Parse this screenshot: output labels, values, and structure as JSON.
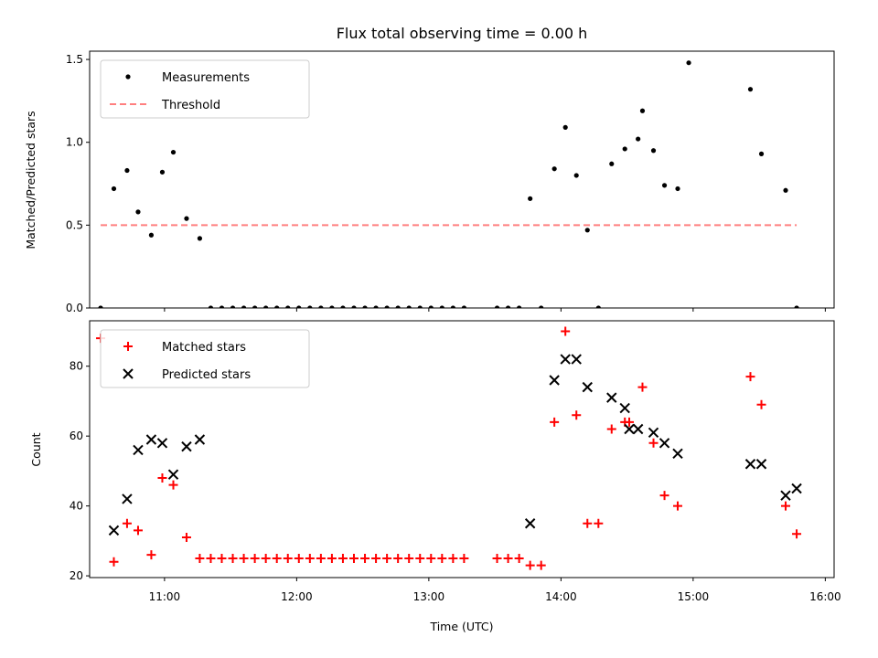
{
  "chart_data": [
    {
      "type": "scatter",
      "title": "Flux total observing time = 0.00 h",
      "xlabel": "",
      "ylabel": "Matched/Predicted stars",
      "xlim": [
        "10:26",
        "16:04"
      ],
      "ylim": [
        0,
        1.55
      ],
      "yticks": [
        "0.0",
        "0.5",
        "1.0",
        "1.5"
      ],
      "grid": false,
      "legend_position": "top-left",
      "series": [
        {
          "name": "Measurements",
          "marker": "dot",
          "color": "#000000",
          "x": [
            "10:31",
            "10:37",
            "10:43",
            "10:48",
            "10:54",
            "10:59",
            "11:04",
            "11:10",
            "11:16",
            "11:21",
            "11:26",
            "11:31",
            "11:36",
            "11:41",
            "11:46",
            "11:51",
            "11:56",
            "12:01",
            "12:06",
            "12:11",
            "12:16",
            "12:21",
            "12:26",
            "12:31",
            "12:36",
            "12:41",
            "12:46",
            "12:51",
            "12:56",
            "13:01",
            "13:06",
            "13:11",
            "13:16",
            "13:31",
            "13:36",
            "13:41",
            "13:46",
            "13:51",
            "13:57",
            "14:02",
            "14:07",
            "14:12",
            "14:17",
            "14:23",
            "14:29",
            "14:35",
            "14:37",
            "14:42",
            "14:47",
            "14:53",
            "14:58",
            "15:26",
            "15:31",
            "15:42",
            "15:47"
          ],
          "y": [
            0.0,
            0.72,
            0.83,
            0.58,
            0.44,
            0.82,
            0.94,
            0.54,
            0.42,
            0.0,
            0.0,
            0.0,
            0.0,
            0.0,
            0.0,
            0.0,
            0.0,
            0.0,
            0.0,
            0.0,
            0.0,
            0.0,
            0.0,
            0.0,
            0.0,
            0.0,
            0.0,
            0.0,
            0.0,
            0.0,
            0.0,
            0.0,
            0.0,
            0.0,
            0.0,
            0.0,
            0.66,
            0.0,
            0.84,
            1.09,
            0.8,
            0.47,
            0.0,
            0.87,
            0.96,
            1.02,
            1.19,
            0.95,
            0.74,
            0.72,
            1.48,
            1.32,
            0.93,
            0.71,
            0.0
          ]
        },
        {
          "name": "Threshold",
          "style": "dashed",
          "color": "#ff7f7f",
          "x": [
            "10:31",
            "15:47"
          ],
          "y": [
            0.5,
            0.5
          ]
        }
      ]
    },
    {
      "type": "scatter",
      "title": "",
      "xlabel": "Time (UTC)",
      "ylabel": "Count",
      "xlim": [
        "10:26",
        "16:04"
      ],
      "ylim": [
        19.5,
        93
      ],
      "xticks": [
        "11:00",
        "12:00",
        "13:00",
        "14:00",
        "15:00",
        "16:00"
      ],
      "yticks": [
        "20",
        "40",
        "60",
        "80"
      ],
      "grid": false,
      "legend_position": "top-left",
      "series": [
        {
          "name": "Matched stars",
          "marker": "plus",
          "color": "#ff0000",
          "x": [
            "10:31",
            "10:37",
            "10:43",
            "10:48",
            "10:54",
            "10:59",
            "11:04",
            "11:10",
            "11:16",
            "11:21",
            "11:26",
            "11:31",
            "11:36",
            "11:41",
            "11:46",
            "11:51",
            "11:56",
            "12:01",
            "12:06",
            "12:11",
            "12:16",
            "12:21",
            "12:26",
            "12:31",
            "12:36",
            "12:41",
            "12:46",
            "12:51",
            "12:56",
            "13:01",
            "13:06",
            "13:11",
            "13:16",
            "13:31",
            "13:36",
            "13:41",
            "13:46",
            "13:51",
            "13:57",
            "14:02",
            "14:07",
            "14:12",
            "14:17",
            "14:23",
            "14:29",
            "14:31",
            "14:37",
            "14:42",
            "14:47",
            "14:53",
            "15:26",
            "15:31",
            "15:42",
            "15:47"
          ],
          "y": [
            88,
            24,
            35,
            33,
            26,
            48,
            46,
            31,
            25,
            25,
            25,
            25,
            25,
            25,
            25,
            25,
            25,
            25,
            25,
            25,
            25,
            25,
            25,
            25,
            25,
            25,
            25,
            25,
            25,
            25,
            25,
            25,
            25,
            25,
            25,
            25,
            23,
            23,
            64,
            90,
            66,
            35,
            35,
            62,
            64,
            64,
            74,
            58,
            43,
            40,
            77,
            69,
            40,
            32
          ]
        },
        {
          "name": "Predicted stars",
          "marker": "x",
          "color": "#000000",
          "x": [
            "10:37",
            "10:43",
            "10:48",
            "10:54",
            "10:59",
            "11:04",
            "11:10",
            "11:16",
            "13:46",
            "13:57",
            "14:02",
            "14:07",
            "14:12",
            "14:23",
            "14:29",
            "14:31",
            "14:35",
            "14:42",
            "14:47",
            "14:53",
            "15:26",
            "15:31",
            "15:42",
            "15:47"
          ],
          "y": [
            33,
            42,
            56,
            59,
            58,
            49,
            57,
            59,
            35,
            76,
            82,
            82,
            74,
            71,
            68,
            62,
            62,
            61,
            58,
            55,
            52,
            52,
            43,
            45
          ]
        }
      ]
    }
  ]
}
